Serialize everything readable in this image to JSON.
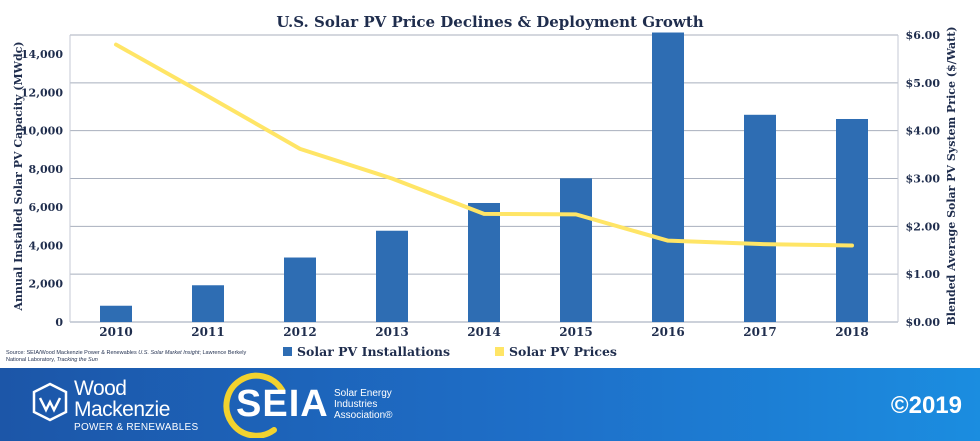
{
  "chart_data": {
    "type": "bar",
    "title": "U.S. Solar PV Price Declines & Deployment Growth",
    "categories": [
      "2010",
      "2011",
      "2012",
      "2013",
      "2014",
      "2015",
      "2016",
      "2017",
      "2018"
    ],
    "series": [
      {
        "name": "Solar PV Installations",
        "type": "bar",
        "axis": "left",
        "color": "#2e6db3",
        "values": [
          850,
          1920,
          3370,
          4770,
          6220,
          7510,
          15130,
          10830,
          10610
        ]
      },
      {
        "name": "Solar PV Prices",
        "type": "line",
        "axis": "right",
        "color": "#ffe566",
        "values": [
          5.8,
          4.72,
          3.62,
          3.0,
          2.26,
          2.25,
          1.7,
          1.63,
          1.6
        ]
      }
    ],
    "ylabel": "Annual Installed Solar PV Capacity (MWdc)",
    "ylabel_right": "Blended Average Solar PV System Price ($/Watt)",
    "ylim": [
      0,
      15000
    ],
    "ylim_right": [
      0,
      6
    ],
    "y_ticks": [
      "0",
      "2,000",
      "4,000",
      "6,000",
      "8,000",
      "10,000",
      "12,000",
      "14,000"
    ],
    "y_tick_values": [
      0,
      2000,
      4000,
      6000,
      8000,
      10000,
      12000,
      14000
    ],
    "y_right_ticks": [
      "$0.00",
      "$1.00",
      "$2.00",
      "$3.00",
      "$4.00",
      "$5.00",
      "$6.00"
    ],
    "y_right_tick_values": [
      0,
      1,
      2,
      3,
      4,
      5,
      6
    ],
    "grid": "horizontal",
    "legend_position": "bottom-center"
  },
  "source": {
    "prefix": "Source: SEIA/Wood Mackenzie Power & Renewables ",
    "pub1": "U.S. Solar Market Insight",
    "middle": "; Lawrence Berkely National Laboratory, ",
    "pub2": "Tracking the Sun"
  },
  "footer": {
    "wood_mackenzie_line1": "Wood",
    "wood_mackenzie_line2": "Mackenzie",
    "wood_mackenzie_sub": "POWER & RENEWABLES",
    "seia_acronym": "SEIA",
    "seia_full_line1": "Solar Energy",
    "seia_full_line2": "Industries",
    "seia_full_line3": "Association®",
    "copyright": "©2019",
    "colors": {
      "band_start": "#1c56a8",
      "band_end": "#1b8de0",
      "sun": "#f2d22e"
    }
  }
}
